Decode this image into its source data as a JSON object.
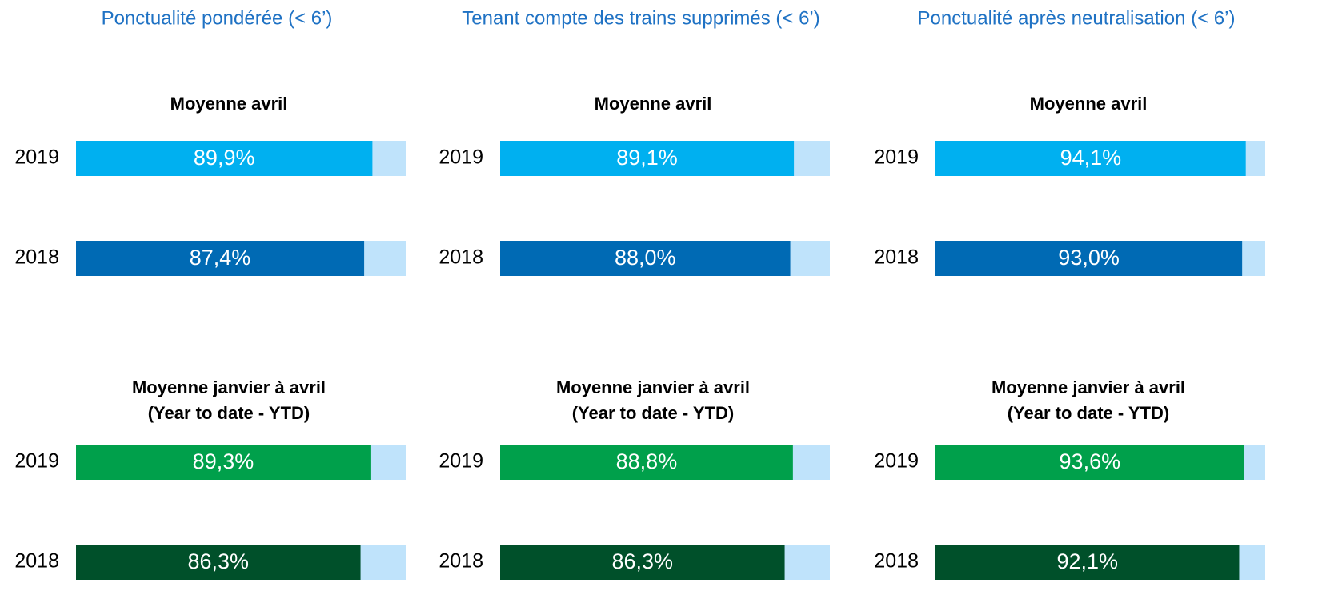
{
  "headers": [
    "Ponctualité pondérée (< 6’)",
    "Tenant compte des trains supprimés (< 6’)",
    "Ponctualité après neutralisation (< 6’)"
  ],
  "chart_data": [
    {
      "type": "bar",
      "orientation": "horizontal",
      "title": [
        "Moyenne avril"
      ],
      "categories": [
        "2019",
        "2018"
      ],
      "values": [
        89.9,
        87.4
      ],
      "value_labels": [
        "89,9%",
        "87,4%"
      ],
      "colors": [
        "#00b0f0",
        "#006ab4"
      ],
      "background": "#bfe3fb",
      "xlim": [
        0,
        100
      ]
    },
    {
      "type": "bar",
      "orientation": "horizontal",
      "title": [
        "Moyenne janvier à avril",
        "(Year to date - YTD)"
      ],
      "categories": [
        "2019",
        "2018"
      ],
      "values": [
        89.3,
        86.3
      ],
      "value_labels": [
        "89,3%",
        "86,3%"
      ],
      "colors": [
        "#00a04b",
        "#00502a"
      ],
      "background": "#bfe3fb",
      "xlim": [
        0,
        100
      ]
    },
    {
      "type": "bar",
      "orientation": "horizontal",
      "title": [
        "Moyenne avril"
      ],
      "categories": [
        "2019",
        "2018"
      ],
      "values": [
        89.1,
        88.0
      ],
      "value_labels": [
        "89,1%",
        "88,0%"
      ],
      "colors": [
        "#00b0f0",
        "#006ab4"
      ],
      "background": "#bfe3fb",
      "xlim": [
        0,
        100
      ]
    },
    {
      "type": "bar",
      "orientation": "horizontal",
      "title": [
        "Moyenne janvier à avril",
        "(Year to date - YTD)"
      ],
      "categories": [
        "2019",
        "2018"
      ],
      "values": [
        88.8,
        86.3
      ],
      "value_labels": [
        "88,8%",
        "86,3%"
      ],
      "colors": [
        "#00a04b",
        "#00502a"
      ],
      "background": "#bfe3fb",
      "xlim": [
        0,
        100
      ]
    },
    {
      "type": "bar",
      "orientation": "horizontal",
      "title": [
        "Moyenne avril"
      ],
      "categories": [
        "2019",
        "2018"
      ],
      "values": [
        94.1,
        93.0
      ],
      "value_labels": [
        "94,1%",
        "93,0%"
      ],
      "colors": [
        "#00b0f0",
        "#006ab4"
      ],
      "background": "#bfe3fb",
      "xlim": [
        0,
        100
      ]
    },
    {
      "type": "bar",
      "orientation": "horizontal",
      "title": [
        "Moyenne janvier à avril",
        "(Year to date - YTD)"
      ],
      "categories": [
        "2019",
        "2018"
      ],
      "values": [
        93.6,
        92.1
      ],
      "value_labels": [
        "93,6%",
        "92,1%"
      ],
      "colors": [
        "#00a04b",
        "#00502a"
      ],
      "background": "#bfe3fb",
      "xlim": [
        0,
        100
      ]
    }
  ]
}
